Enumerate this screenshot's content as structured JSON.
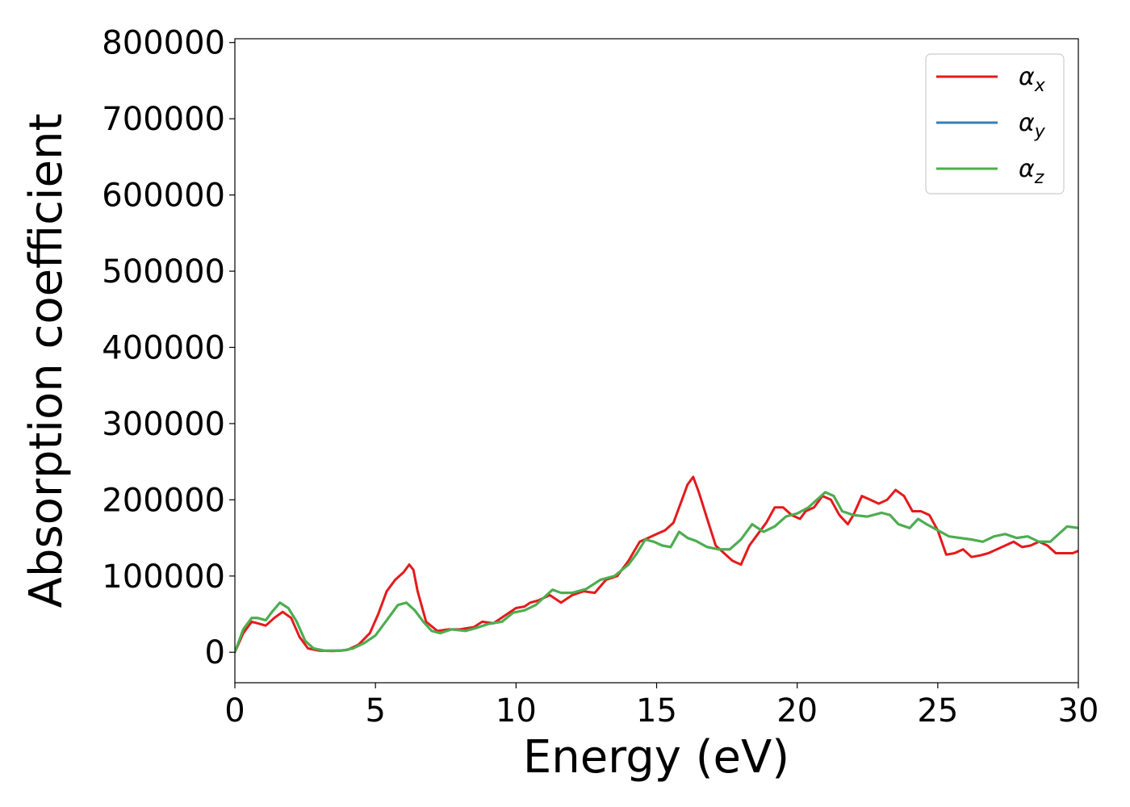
{
  "chart_data": {
    "type": "line",
    "title": "",
    "xlabel": "Energy (eV)",
    "ylabel": "Absorption coefficient",
    "xlim": [
      0,
      30
    ],
    "ylim": [
      -40000,
      805000
    ],
    "xticks": [
      0,
      5,
      10,
      15,
      20,
      25,
      30
    ],
    "yticks": [
      0,
      100000,
      200000,
      300000,
      400000,
      500000,
      600000,
      700000,
      800000
    ],
    "grid": false,
    "legend_position": "top-right",
    "series": [
      {
        "name": "α_x",
        "label_main": "α",
        "label_sub": "x",
        "color": "#e41a1c",
        "x": [
          0,
          0.3,
          0.6,
          0.8,
          1.1,
          1.4,
          1.7,
          2.0,
          2.3,
          2.6,
          3.0,
          3.5,
          4.0,
          4.4,
          4.8,
          5.1,
          5.4,
          5.7,
          6.0,
          6.2,
          6.35,
          6.5,
          6.8,
          7.2,
          7.6,
          8.0,
          8.5,
          8.8,
          9.2,
          9.6,
          10.0,
          10.3,
          10.5,
          10.8,
          11.2,
          11.6,
          12.0,
          12.4,
          12.8,
          13.2,
          13.6,
          14.0,
          14.4,
          14.7,
          15.0,
          15.3,
          15.6,
          15.9,
          16.1,
          16.3,
          16.5,
          16.8,
          17.1,
          17.4,
          17.7,
          18.0,
          18.3,
          18.6,
          18.9,
          19.2,
          19.5,
          19.8,
          20.1,
          20.3,
          20.6,
          20.9,
          21.2,
          21.5,
          21.8,
          22.0,
          22.3,
          22.6,
          22.9,
          23.2,
          23.5,
          23.8,
          24.1,
          24.4,
          24.7,
          25.0,
          25.3,
          25.6,
          25.9,
          26.2,
          26.5,
          26.8,
          27.1,
          27.4,
          27.7,
          28.0,
          28.3,
          28.6,
          28.9,
          29.2,
          29.5,
          29.8,
          30.0
        ],
        "y": [
          0,
          25000,
          40000,
          38000,
          35000,
          45000,
          53000,
          45000,
          20000,
          5000,
          2000,
          1500,
          3000,
          10000,
          25000,
          50000,
          80000,
          95000,
          105000,
          115000,
          108000,
          80000,
          40000,
          28000,
          30000,
          30000,
          33000,
          40000,
          38000,
          48000,
          58000,
          60000,
          65000,
          68000,
          75000,
          65000,
          75000,
          80000,
          78000,
          95000,
          100000,
          120000,
          145000,
          150000,
          155000,
          160000,
          170000,
          200000,
          220000,
          230000,
          210000,
          175000,
          140000,
          130000,
          120000,
          115000,
          140000,
          155000,
          170000,
          190000,
          190000,
          180000,
          175000,
          185000,
          190000,
          205000,
          200000,
          180000,
          168000,
          180000,
          205000,
          200000,
          195000,
          200000,
          213000,
          205000,
          185000,
          185000,
          180000,
          160000,
          128000,
          130000,
          135000,
          125000,
          127000,
          130000,
          135000,
          140000,
          145000,
          138000,
          140000,
          145000,
          140000,
          130000,
          130000,
          130000,
          133000
        ]
      },
      {
        "name": "α_y",
        "label_main": "α",
        "label_sub": "y",
        "color": "#377eb8",
        "x": [
          0,
          0.3,
          0.6,
          0.8,
          1.1,
          1.3,
          1.6,
          1.9,
          2.2,
          2.5,
          2.8,
          3.2,
          3.8,
          4.2,
          4.6,
          5.0,
          5.4,
          5.8,
          6.1,
          6.4,
          6.7,
          7.0,
          7.3,
          7.7,
          8.2,
          8.6,
          9.0,
          9.5,
          9.9,
          10.3,
          10.7,
          11.0,
          11.3,
          11.6,
          12.0,
          12.5,
          13.0,
          13.5,
          14.0,
          14.3,
          14.6,
          14.9,
          15.2,
          15.5,
          15.8,
          16.1,
          16.4,
          16.8,
          17.2,
          17.6,
          18.0,
          18.4,
          18.8,
          19.2,
          19.6,
          20.0,
          20.4,
          20.7,
          21.0,
          21.3,
          21.6,
          22.0,
          22.5,
          23.0,
          23.3,
          23.6,
          24.0,
          24.3,
          24.6,
          25.0,
          25.4,
          25.8,
          26.2,
          26.6,
          27.0,
          27.4,
          27.8,
          28.2,
          28.6,
          29.0,
          29.3,
          29.6,
          30.0
        ],
        "y": [
          0,
          30000,
          45000,
          45000,
          42000,
          52000,
          65000,
          58000,
          40000,
          15000,
          5000,
          2000,
          2000,
          5000,
          12000,
          22000,
          42000,
          62000,
          65000,
          55000,
          40000,
          28000,
          25000,
          30000,
          28000,
          32000,
          37000,
          40000,
          52000,
          55000,
          62000,
          72000,
          82000,
          78000,
          78000,
          83000,
          95000,
          100000,
          115000,
          130000,
          148000,
          145000,
          140000,
          138000,
          158000,
          150000,
          146000,
          138000,
          135000,
          135000,
          148000,
          168000,
          158000,
          165000,
          178000,
          182000,
          190000,
          200000,
          210000,
          205000,
          185000,
          180000,
          178000,
          183000,
          180000,
          168000,
          163000,
          175000,
          168000,
          160000,
          152000,
          150000,
          148000,
          145000,
          152000,
          155000,
          150000,
          152000,
          145000,
          145000,
          155000,
          165000,
          163000
        ]
      },
      {
        "name": "α_z",
        "label_main": "α",
        "label_sub": "z",
        "color": "#4daf4a",
        "x": [
          0,
          0.3,
          0.6,
          0.8,
          1.1,
          1.3,
          1.6,
          1.9,
          2.2,
          2.5,
          2.8,
          3.2,
          3.8,
          4.2,
          4.6,
          5.0,
          5.4,
          5.8,
          6.1,
          6.4,
          6.7,
          7.0,
          7.3,
          7.7,
          8.2,
          8.6,
          9.0,
          9.5,
          9.9,
          10.3,
          10.7,
          11.0,
          11.3,
          11.6,
          12.0,
          12.5,
          13.0,
          13.5,
          14.0,
          14.3,
          14.6,
          14.9,
          15.2,
          15.5,
          15.8,
          16.1,
          16.4,
          16.8,
          17.2,
          17.6,
          18.0,
          18.4,
          18.8,
          19.2,
          19.6,
          20.0,
          20.4,
          20.7,
          21.0,
          21.3,
          21.6,
          22.0,
          22.5,
          23.0,
          23.3,
          23.6,
          24.0,
          24.3,
          24.6,
          25.0,
          25.4,
          25.8,
          26.2,
          26.6,
          27.0,
          27.4,
          27.8,
          28.2,
          28.6,
          29.0,
          29.3,
          29.6,
          30.0
        ],
        "y": [
          0,
          30000,
          45000,
          45000,
          42000,
          52000,
          65000,
          58000,
          40000,
          15000,
          5000,
          2000,
          2000,
          5000,
          12000,
          22000,
          42000,
          62000,
          65000,
          55000,
          40000,
          28000,
          25000,
          30000,
          28000,
          32000,
          37000,
          40000,
          52000,
          55000,
          62000,
          72000,
          82000,
          78000,
          78000,
          83000,
          95000,
          100000,
          115000,
          130000,
          148000,
          145000,
          140000,
          138000,
          158000,
          150000,
          146000,
          138000,
          135000,
          135000,
          148000,
          168000,
          158000,
          165000,
          178000,
          182000,
          190000,
          200000,
          210000,
          205000,
          185000,
          180000,
          178000,
          183000,
          180000,
          168000,
          163000,
          175000,
          168000,
          160000,
          152000,
          150000,
          148000,
          145000,
          152000,
          155000,
          150000,
          152000,
          145000,
          145000,
          155000,
          165000,
          163000
        ]
      }
    ]
  }
}
